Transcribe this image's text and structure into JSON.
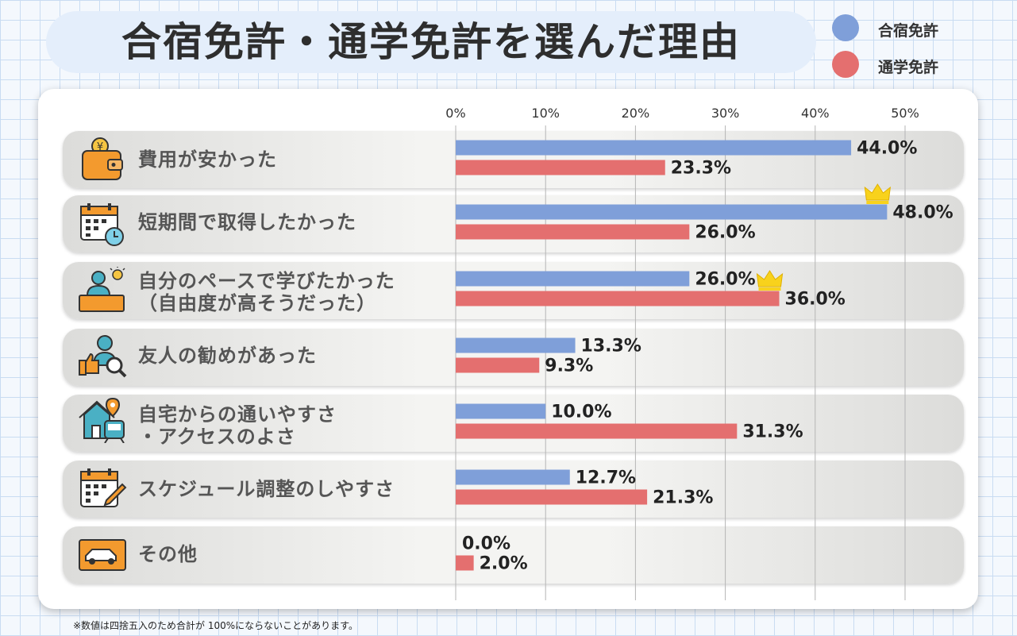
{
  "title": "合宿免許・通学免許を選んだ理由",
  "legend": [
    {
      "label": "合宿免許",
      "color": "#7f9fd9"
    },
    {
      "label": "通学免許",
      "color": "#e46f6f"
    }
  ],
  "footnote": "※数値は四捨五入のため合計が 100%にならないことがあります。",
  "rows": [
    {
      "label": "費用が安かった",
      "icon": "wallet-yen-icon"
    },
    {
      "label": "短期間で取得したかった",
      "icon": "calendar-clock-icon"
    },
    {
      "label": "自分のペースで学びたかった\n（自由度が高そうだった）",
      "icon": "person-desk-idea-icon"
    },
    {
      "label": "友人の勧めがあった",
      "icon": "person-thumbsup-search-icon"
    },
    {
      "label": "自宅からの通いやすさ\n・アクセスのよさ",
      "icon": "house-pin-train-icon"
    },
    {
      "label": "スケジュール調整のしやすさ",
      "icon": "calendar-pencil-icon"
    },
    {
      "label": "その他",
      "icon": "car-icon"
    }
  ],
  "chart_data": {
    "type": "bar",
    "orientation": "horizontal",
    "categories": [
      "費用が安かった",
      "短期間で取得したかった",
      "自分のペースで学びたかった（自由度が高そうだった）",
      "友人の勧めがあった",
      "自宅からの通いやすさ・アクセスのよさ",
      "スケジュール調整のしやすさ",
      "その他"
    ],
    "series": [
      {
        "name": "合宿免許",
        "color": "#7f9fd9",
        "values": [
          44.0,
          48.0,
          26.0,
          13.3,
          10.0,
          12.7,
          0.0
        ],
        "data_labels": [
          "44.0%",
          "48.0%",
          "26.0%",
          "13.3%",
          "10.0%",
          "12.7%",
          "0.0%"
        ]
      },
      {
        "name": "通学免許",
        "color": "#e46f6f",
        "values": [
          23.3,
          26.0,
          36.0,
          9.3,
          31.3,
          21.3,
          2.0
        ],
        "data_labels": [
          "23.3%",
          "26.0%",
          "36.0%",
          "9.3%",
          "31.3%",
          "21.3%",
          "2.0%"
        ]
      }
    ],
    "xlim": [
      0,
      50
    ],
    "xticks": [
      0,
      10,
      20,
      30,
      40,
      50
    ],
    "xtick_labels": [
      "0%",
      "10%",
      "20%",
      "30%",
      "40%",
      "50%"
    ],
    "grid": true,
    "legend_position": "top-right",
    "crowns": [
      {
        "series": "合宿免許",
        "category_index": 1
      },
      {
        "series": "通学免許",
        "category_index": 2
      }
    ]
  }
}
